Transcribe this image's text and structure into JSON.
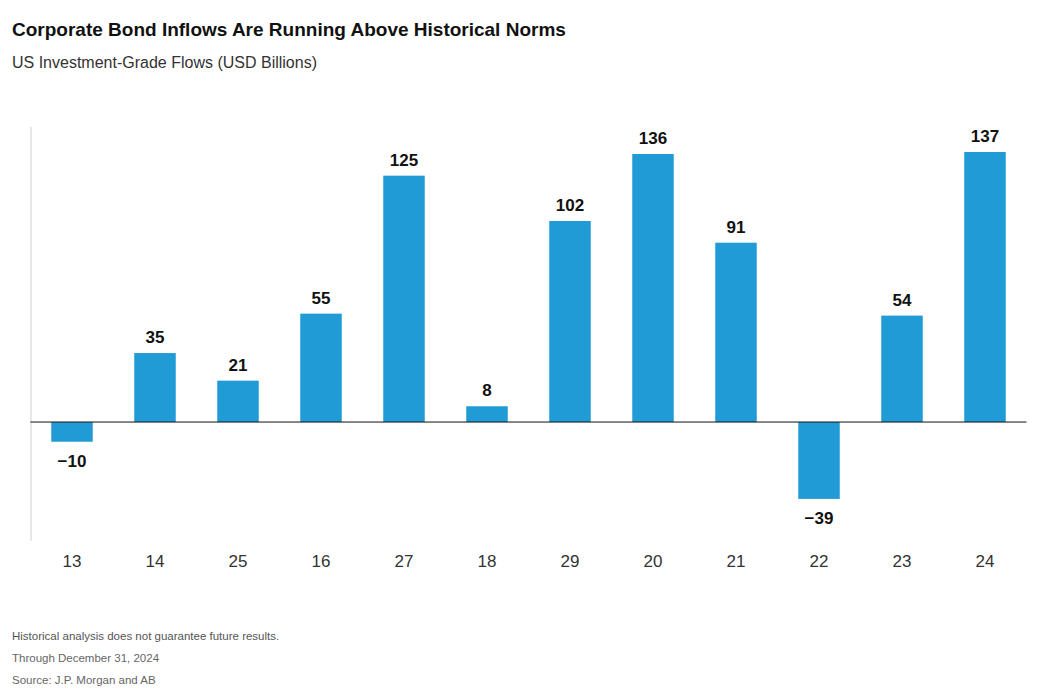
{
  "chart_data": {
    "type": "bar",
    "title": "Corporate Bond Inflows Are Running Above Historical Norms",
    "subtitle": "US Investment-Grade Flows (USD Billions)",
    "categories": [
      "13",
      "14",
      "25",
      "16",
      "27",
      "18",
      "29",
      "20",
      "21",
      "22",
      "23",
      "24"
    ],
    "values": [
      -10,
      35,
      21,
      55,
      125,
      8,
      102,
      136,
      91,
      -39,
      54,
      137
    ],
    "value_labels": [
      "−10",
      "35",
      "21",
      "55",
      "125",
      "8",
      "102",
      "136",
      "91",
      "−39",
      "54",
      "137"
    ],
    "color": "#219bd6",
    "ylim": [
      -60,
      150
    ],
    "yticks": [
      0
    ],
    "grid": true,
    "data_labels": true,
    "tick_labels": "x",
    "annotations": [
      "Historical analysis does not guarantee future results.",
      "Through December 31, 2024",
      "Source: J.P. Morgan and AB"
    ]
  }
}
